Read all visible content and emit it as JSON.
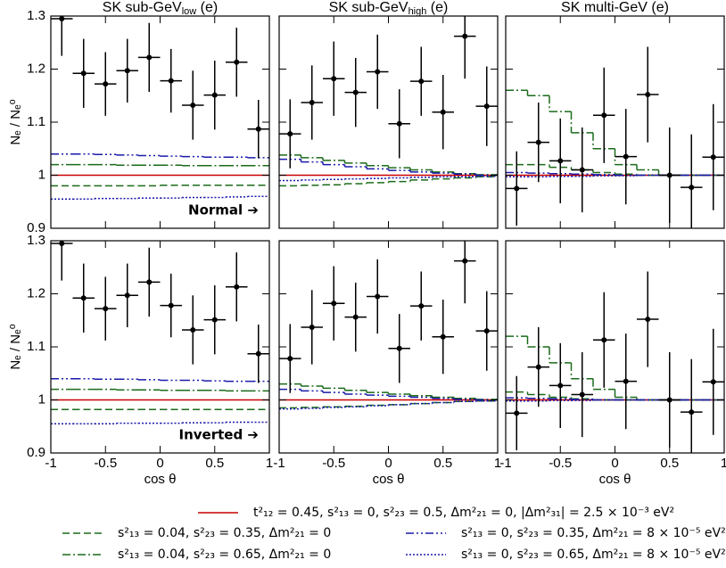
{
  "chart_data": [
    {
      "type": "line",
      "title": [
        "SK sub-GeV",
        "low",
        " (e)"
      ],
      "ylabel": "Nₑ / Nₑ⁰",
      "annotation": "Normal ➔",
      "x": [
        -0.9,
        -0.7,
        -0.5,
        -0.3,
        -0.1,
        0.1,
        0.3,
        0.5,
        0.7,
        0.9
      ],
      "xlim": [
        -1,
        1
      ],
      "xticks": [
        -1,
        -0.5,
        0,
        0.5,
        1
      ],
      "ylim": [
        0.9,
        1.3
      ],
      "yticks": [
        0.9,
        1,
        1.1,
        1.2,
        1.3
      ],
      "data_points": {
        "values": [
          1.295,
          1.192,
          1.172,
          1.197,
          1.222,
          1.178,
          1.132,
          1.151,
          1.213,
          1.087
        ],
        "errors": [
          0.07,
          0.065,
          0.06,
          0.06,
          0.065,
          0.06,
          0.065,
          0.065,
          0.065,
          0.055
        ]
      },
      "series": [
        {
          "color": "#cc0000",
          "dash": "solid",
          "values": [
            1,
            1,
            1,
            1,
            1,
            1,
            1,
            1,
            1,
            1
          ]
        },
        {
          "color": "#1a6b1a",
          "dash": "dashed",
          "values": [
            0.98,
            0.98,
            0.98,
            0.98,
            0.98,
            0.981,
            0.981,
            0.981,
            0.981,
            0.981
          ]
        },
        {
          "color": "#1a6b1a",
          "dash": "dashdot",
          "values": [
            1.02,
            1.02,
            1.02,
            1.019,
            1.019,
            1.019,
            1.018,
            1.018,
            1.018,
            1.018
          ]
        },
        {
          "color": "#1a1aaa",
          "dash": "dashdotdot",
          "values": [
            1.04,
            1.04,
            1.039,
            1.038,
            1.037,
            1.036,
            1.035,
            1.034,
            1.034,
            1.033
          ]
        },
        {
          "color": "#1a1aaa",
          "dash": "dotted",
          "values": [
            0.955,
            0.955,
            0.956,
            0.956,
            0.957,
            0.957,
            0.958,
            0.958,
            0.959,
            0.96
          ]
        }
      ]
    },
    {
      "type": "line",
      "title": [
        "SK sub-GeV",
        "high",
        " (e)"
      ],
      "x": [
        -0.9,
        -0.7,
        -0.5,
        -0.3,
        -0.1,
        0.1,
        0.3,
        0.5,
        0.7,
        0.9
      ],
      "xlim": [
        -1,
        1
      ],
      "xticks": [
        -1,
        -0.5,
        0,
        0.5,
        1
      ],
      "ylim": [
        0.9,
        1.3
      ],
      "yticks": [
        0.9,
        1,
        1.1,
        1.2,
        1.3
      ],
      "data_points": {
        "values": [
          1.078,
          1.137,
          1.182,
          1.156,
          1.195,
          1.097,
          1.177,
          1.119,
          1.262,
          1.13
        ],
        "errors": [
          0.065,
          0.07,
          0.07,
          0.065,
          0.07,
          0.065,
          0.065,
          0.07,
          0.08,
          0.075
        ]
      },
      "series": [
        {
          "color": "#cc0000",
          "dash": "solid",
          "values": [
            1,
            1,
            1,
            1,
            1,
            1,
            1,
            1,
            1,
            1
          ]
        },
        {
          "color": "#1a6b1a",
          "dash": "dashed",
          "values": [
            0.98,
            0.981,
            0.982,
            0.984,
            0.986,
            0.988,
            0.991,
            0.993,
            0.995,
            0.997
          ]
        },
        {
          "color": "#1a6b1a",
          "dash": "dashdot",
          "values": [
            1.038,
            1.033,
            1.028,
            1.023,
            1.018,
            1.014,
            1.01,
            1.006,
            1.003,
            1.001
          ]
        },
        {
          "color": "#1a1aaa",
          "dash": "dashdotdot",
          "values": [
            1.03,
            1.025,
            1.02,
            1.016,
            1.012,
            1.009,
            1.006,
            1.004,
            1.002,
            1.0
          ]
        },
        {
          "color": "#1a1aaa",
          "dash": "dotted",
          "values": [
            0.99,
            0.991,
            0.992,
            0.993,
            0.994,
            0.995,
            0.996,
            0.997,
            0.997,
            0.998
          ]
        }
      ]
    },
    {
      "type": "line",
      "title": [
        "SK multi-GeV (e)"
      ],
      "x": [
        -0.9,
        -0.7,
        -0.5,
        -0.3,
        -0.1,
        0.1,
        0.3,
        0.5,
        0.7,
        0.9
      ],
      "xlim": [
        -1,
        1
      ],
      "xticks": [
        -1,
        -0.5,
        0,
        0.5,
        1
      ],
      "ylim": [
        0.9,
        1.3
      ],
      "yticks": [
        0.9,
        1,
        1.1,
        1.2,
        1.3
      ],
      "data_points": {
        "values": [
          0.975,
          1.062,
          1.027,
          1.01,
          1.113,
          1.035,
          1.152,
          1.0,
          0.977,
          1.034
        ],
        "errors": [
          0.07,
          0.075,
          0.08,
          0.08,
          0.09,
          0.09,
          0.09,
          0.09,
          0.1,
          0.1
        ]
      },
      "series": [
        {
          "color": "#cc0000",
          "dash": "solid",
          "values": [
            1,
            1,
            1,
            1,
            1,
            1,
            1,
            1,
            1,
            1
          ]
        },
        {
          "color": "#1a6b1a",
          "dash": "dashed",
          "values": [
            1.02,
            1.02,
            1.015,
            1.01,
            1.005,
            1.002,
            1.0,
            1.0,
            1.0,
            1.0
          ]
        },
        {
          "color": "#1a6b1a",
          "dash": "dashdot",
          "values": [
            1.16,
            1.15,
            1.12,
            1.08,
            1.05,
            1.02,
            1.01,
            1.0,
            1.0,
            1.0
          ]
        },
        {
          "color": "#1a1aaa",
          "dash": "dashdotdot",
          "values": [
            1.005,
            1.004,
            1.003,
            1.002,
            1.001,
            1.0,
            1.0,
            1.0,
            1.0,
            1.0
          ]
        },
        {
          "color": "#1a1aaa",
          "dash": "dotted",
          "values": [
            0.997,
            0.997,
            0.998,
            0.998,
            0.999,
            0.999,
            1.0,
            1.0,
            1.0,
            1.0
          ]
        }
      ]
    },
    {
      "type": "line",
      "ylabel": "Nₑ / Nₑ⁰",
      "annotation": "Inverted ➔",
      "xlabel": "cos θ",
      "x": [
        -0.9,
        -0.7,
        -0.5,
        -0.3,
        -0.1,
        0.1,
        0.3,
        0.5,
        0.7,
        0.9
      ],
      "xlim": [
        -1,
        1
      ],
      "xticks": [
        -1,
        -0.5,
        0,
        0.5,
        1
      ],
      "ylim": [
        0.9,
        1.3
      ],
      "yticks": [
        0.9,
        1,
        1.1,
        1.2,
        1.3
      ],
      "data_points": {
        "values": [
          1.295,
          1.192,
          1.172,
          1.197,
          1.222,
          1.178,
          1.132,
          1.151,
          1.213,
          1.087
        ],
        "errors": [
          0.07,
          0.065,
          0.06,
          0.06,
          0.065,
          0.06,
          0.065,
          0.065,
          0.065,
          0.055
        ]
      },
      "series": [
        {
          "color": "#cc0000",
          "dash": "solid",
          "values": [
            1,
            1,
            1,
            1,
            1,
            1,
            1,
            1,
            1,
            1
          ]
        },
        {
          "color": "#1a6b1a",
          "dash": "dashed",
          "values": [
            0.982,
            0.982,
            0.982,
            0.982,
            0.982,
            0.982,
            0.982,
            0.982,
            0.982,
            0.982
          ]
        },
        {
          "color": "#1a6b1a",
          "dash": "dashdot",
          "values": [
            1.02,
            1.02,
            1.02,
            1.019,
            1.019,
            1.018,
            1.018,
            1.018,
            1.017,
            1.017
          ]
        },
        {
          "color": "#1a1aaa",
          "dash": "dashdotdot",
          "values": [
            1.04,
            1.04,
            1.039,
            1.039,
            1.038,
            1.037,
            1.037,
            1.036,
            1.035,
            1.035
          ]
        },
        {
          "color": "#1a1aaa",
          "dash": "dotted",
          "values": [
            0.955,
            0.955,
            0.955,
            0.956,
            0.956,
            0.956,
            0.957,
            0.957,
            0.958,
            0.958
          ]
        }
      ]
    },
    {
      "type": "line",
      "xlabel": "cos θ",
      "x": [
        -0.9,
        -0.7,
        -0.5,
        -0.3,
        -0.1,
        0.1,
        0.3,
        0.5,
        0.7,
        0.9
      ],
      "xlim": [
        -1,
        1
      ],
      "xticks": [
        -1,
        -0.5,
        0,
        0.5,
        1
      ],
      "ylim": [
        0.9,
        1.3
      ],
      "yticks": [
        0.9,
        1,
        1.1,
        1.2,
        1.3
      ],
      "data_points": {
        "values": [
          1.078,
          1.137,
          1.182,
          1.156,
          1.195,
          1.097,
          1.177,
          1.119,
          1.262,
          1.13
        ],
        "errors": [
          0.065,
          0.07,
          0.07,
          0.065,
          0.07,
          0.065,
          0.065,
          0.07,
          0.08,
          0.075
        ]
      },
      "series": [
        {
          "color": "#cc0000",
          "dash": "solid",
          "values": [
            1,
            1,
            1,
            1,
            1,
            1,
            1,
            1,
            1,
            1
          ]
        },
        {
          "color": "#1a6b1a",
          "dash": "dashed",
          "values": [
            0.985,
            0.986,
            0.987,
            0.988,
            0.99,
            0.991,
            0.993,
            0.995,
            0.997,
            0.998
          ]
        },
        {
          "color": "#1a6b1a",
          "dash": "dashdot",
          "values": [
            1.03,
            1.026,
            1.022,
            1.018,
            1.014,
            1.011,
            1.008,
            1.005,
            1.003,
            1.001
          ]
        },
        {
          "color": "#1a1aaa",
          "dash": "dashdotdot",
          "values": [
            1.02,
            1.017,
            1.014,
            1.011,
            1.009,
            1.007,
            1.005,
            1.003,
            1.001,
            1.0
          ]
        },
        {
          "color": "#1a1aaa",
          "dash": "dotted",
          "values": [
            0.983,
            0.984,
            0.986,
            0.987,
            0.989,
            0.991,
            0.993,
            0.995,
            0.997,
            0.998
          ]
        }
      ]
    },
    {
      "type": "line",
      "xlabel": "cos θ",
      "x": [
        -0.9,
        -0.7,
        -0.5,
        -0.3,
        -0.1,
        0.1,
        0.3,
        0.5,
        0.7,
        0.9
      ],
      "xlim": [
        -1,
        1
      ],
      "xticks": [
        -1,
        -0.5,
        0,
        0.5,
        1
      ],
      "ylim": [
        0.9,
        1.3
      ],
      "yticks": [
        0.9,
        1,
        1.1,
        1.2,
        1.3
      ],
      "data_points": {
        "values": [
          0.975,
          1.062,
          1.027,
          1.01,
          1.113,
          1.035,
          1.152,
          1.0,
          0.977,
          1.034
        ],
        "errors": [
          0.07,
          0.075,
          0.08,
          0.08,
          0.09,
          0.09,
          0.09,
          0.09,
          0.1,
          0.1
        ]
      },
      "series": [
        {
          "color": "#cc0000",
          "dash": "solid",
          "values": [
            1,
            1,
            1,
            1,
            1,
            1,
            1,
            1,
            1,
            1
          ]
        },
        {
          "color": "#1a6b1a",
          "dash": "dashed",
          "values": [
            1.015,
            1.01,
            1.005,
            1.002,
            1.0,
            1.0,
            1.0,
            1.0,
            1.0,
            1.0
          ]
        },
        {
          "color": "#1a6b1a",
          "dash": "dashdot",
          "values": [
            1.12,
            1.1,
            1.07,
            1.04,
            1.02,
            1.005,
            1.0,
            1.0,
            1.0,
            1.0
          ]
        },
        {
          "color": "#1a1aaa",
          "dash": "dashdotdot",
          "values": [
            1.004,
            1.003,
            1.002,
            1.001,
            1.0,
            1.0,
            1.0,
            1.0,
            1.0,
            1.0
          ]
        },
        {
          "color": "#1a1aaa",
          "dash": "dotted",
          "values": [
            0.998,
            0.998,
            0.999,
            0.999,
            1.0,
            1.0,
            1.0,
            1.0,
            1.0,
            1.0
          ]
        }
      ]
    }
  ],
  "legend": [
    {
      "name": "t²₁₂ = 0.45, s²₁₃ = 0, s²₂₃ = 0.5, Δm²₂₁ = 0, |Δm²₃₁| = 2.5 × 10⁻³ eV²",
      "color": "#cc0000",
      "dash": "solid"
    },
    {
      "name": "s²₁₃ = 0.04, s²₂₃ = 0.35, Δm²₂₁ = 0",
      "color": "#1a6b1a",
      "dash": "dashed"
    },
    {
      "name": "s²₁₃ = 0.04, s²₂₃ = 0.65, Δm²₂₁ = 0",
      "color": "#1a6b1a",
      "dash": "dashdot"
    },
    {
      "name": "s²₁₃ = 0, s²₂₃ = 0.35, Δm²₂₁ = 8 × 10⁻⁵ eV²",
      "color": "#1a1aaa",
      "dash": "dashdotdot"
    },
    {
      "name": "s²₁₃ = 0, s²₂₃ = 0.65, Δm²₂₁ = 8 × 10⁻⁵ eV²",
      "color": "#1a1aaa",
      "dash": "dotted"
    }
  ]
}
